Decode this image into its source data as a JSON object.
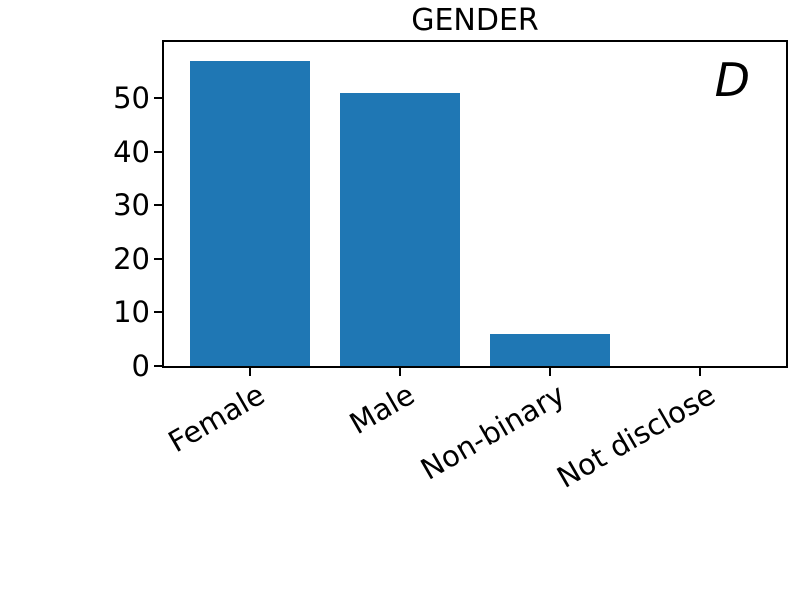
{
  "chart_data": {
    "type": "bar",
    "title": "GENDER",
    "panel_label": "D",
    "categories": [
      "Female",
      "Male",
      "Non-binary",
      "Not disclose"
    ],
    "values": [
      57,
      51,
      6,
      0
    ],
    "bar_color": "#1f77b4",
    "axis_color": "#000000",
    "background_color": "#ffffff",
    "xlabel": "",
    "ylabel": "",
    "ylim": [
      0,
      60.5
    ],
    "yticks": [
      0,
      10,
      20,
      30,
      40,
      50
    ],
    "xtick_rotation_deg": 30,
    "grid": false,
    "legend": "none"
  }
}
